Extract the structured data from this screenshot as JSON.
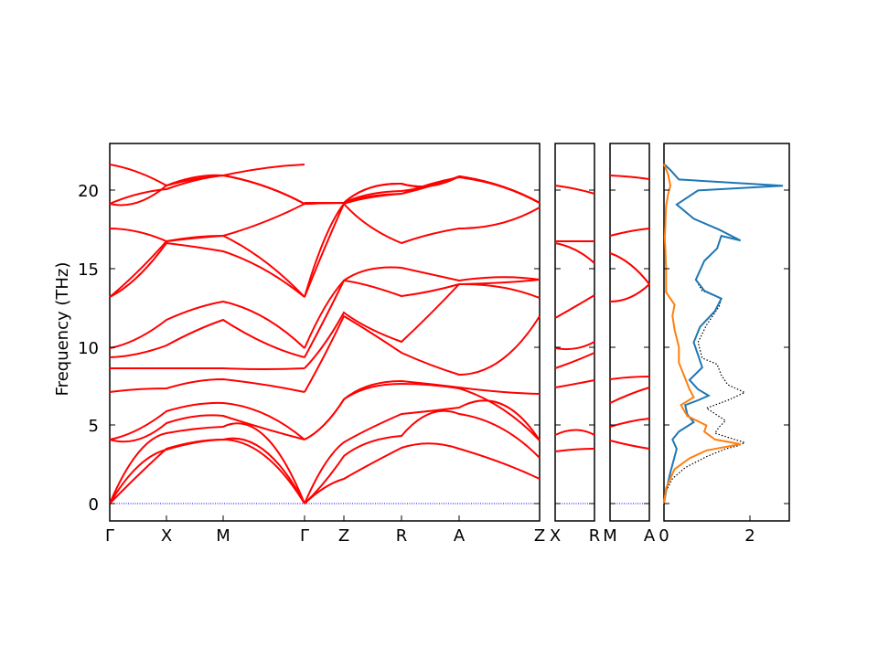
{
  "chart_data": {
    "type": "line",
    "ylabel": "Frequency (THz)",
    "ylim": [
      -1.1,
      23.0
    ],
    "yticks": [
      0,
      5,
      10,
      15,
      20
    ],
    "colors": {
      "bands": "#ff0000",
      "dos_total": "#000000",
      "dos_a": "#1f77b4",
      "dos_b": "#ff7f0e",
      "zero_line": "#0000ff"
    },
    "band_panels": [
      {
        "segments": [
          "Γ–X",
          "X–M",
          "M–Γ",
          "Γ–Z",
          "Z–R",
          "R–A",
          "A–Z"
        ],
        "tick_labels": [
          "Γ",
          "X",
          "M",
          "Γ",
          "Z",
          "R",
          "A",
          "Z"
        ],
        "approx_band_values_at_ticks": [
          [
            0,
            3.4,
            4.1,
            0,
            1.6,
            3.5,
            3.5,
            1.6
          ],
          [
            0,
            3.5,
            4.1,
            0,
            3.0,
            4.3,
            5.7,
            2.9
          ],
          [
            0,
            4.5,
            4.9,
            0,
            3.9,
            5.7,
            6.1,
            4.0
          ],
          [
            4.1,
            5.1,
            5.6,
            4.0,
            6.6,
            7.6,
            7.3,
            4.0
          ],
          [
            4.1,
            5.9,
            6.4,
            4.1,
            6.6,
            7.8,
            7.4,
            7.0
          ],
          [
            7.1,
            7.3,
            7.9,
            7.1,
            11.9,
            9.6,
            8.2,
            11.9
          ],
          [
            8.6,
            8.6,
            8.6,
            8.6,
            12.1,
            10.3,
            13.9,
            13.1
          ],
          [
            9.3,
            10.1,
            11.7,
            9.3,
            14.2,
            13.2,
            14.0,
            14.3
          ],
          [
            9.9,
            11.7,
            12.9,
            9.9,
            14.2,
            15.1,
            14.2,
            14.3
          ],
          [
            13.2,
            16.6,
            16.0,
            13.2,
            19.1,
            16.6,
            17.6,
            18.9
          ],
          [
            13.2,
            16.7,
            17.1,
            13.2,
            19.1,
            19.7,
            20.6,
            19.2
          ],
          [
            17.5,
            16.7,
            17.1,
            19.1,
            19.2,
            19.7,
            20.7,
            19.2
          ],
          [
            19.1,
            20.1,
            20.9,
            19.1,
            19.2,
            19.9,
            20.7,
            19.2
          ],
          [
            19.1,
            20.3,
            20.9,
            19.1,
            19.2,
            20.4,
            20.7,
            19.2
          ],
          [
            21.7,
            20.3,
            20.9,
            21.7,
            19.2,
            20.4,
            20.7,
            19.2
          ]
        ]
      },
      {
        "segments": [
          "X–R"
        ],
        "tick_labels": [
          "X",
          "R"
        ],
        "approx_band_values_at_ticks": [
          [
            3.3,
            3.5
          ],
          [
            4.4,
            4.4
          ],
          [
            7.4,
            7.9
          ],
          [
            8.6,
            9.6
          ],
          [
            9.9,
            10.4
          ],
          [
            11.8,
            13.3
          ],
          [
            16.6,
            15.4
          ],
          [
            16.7,
            16.7
          ],
          [
            20.3,
            19.8
          ]
        ]
      },
      {
        "segments": [
          "M–A"
        ],
        "tick_labels": [
          "M",
          "A"
        ],
        "approx_band_values_at_ticks": [
          [
            4.0,
            3.5
          ],
          [
            4.9,
            5.4
          ],
          [
            6.4,
            7.4
          ],
          [
            7.8,
            8.1
          ],
          [
            12.9,
            14.0
          ],
          [
            15.9,
            14.0
          ],
          [
            17.1,
            17.6
          ],
          [
            20.9,
            20.7
          ]
        ]
      }
    ],
    "dos": {
      "xlim": [
        0,
        2.95
      ],
      "xticks": [
        0,
        2
      ],
      "series": [
        {
          "style": "dotted",
          "points": [
            [
              0,
              0
            ],
            [
              0.05,
              0.8
            ],
            [
              0.2,
              1.6
            ],
            [
              0.5,
              2.3
            ],
            [
              1.0,
              3.0
            ],
            [
              1.45,
              3.5
            ],
            [
              1.75,
              3.7
            ],
            [
              1.9,
              3.9
            ],
            [
              1.55,
              4.2
            ],
            [
              1.2,
              4.5
            ],
            [
              1.3,
              4.9
            ],
            [
              1.45,
              5.3
            ],
            [
              1.0,
              6.1
            ],
            [
              1.5,
              6.6
            ],
            [
              1.9,
              7.1
            ],
            [
              1.5,
              7.6
            ],
            [
              1.35,
              8.2
            ],
            [
              1.25,
              8.9
            ],
            [
              0.9,
              9.3
            ],
            [
              0.8,
              10.3
            ],
            [
              1.0,
              11.4
            ],
            [
              1.3,
              12.6
            ],
            [
              1.35,
              13.1
            ],
            [
              0.9,
              13.6
            ],
            [
              0.75,
              14.3
            ],
            [
              0.95,
              15.5
            ],
            [
              1.25,
              16.3
            ],
            [
              1.35,
              17.1
            ],
            [
              1.8,
              16.8
            ],
            [
              1.3,
              17.5
            ],
            [
              0.7,
              18.2
            ],
            [
              0.3,
              19.1
            ],
            [
              0.8,
              20.0
            ],
            [
              2.8,
              20.3
            ],
            [
              0.35,
              20.7
            ],
            [
              0.15,
              21.3
            ],
            [
              0,
              21.7
            ]
          ]
        },
        {
          "style": "solid",
          "points": [
            [
              0,
              0
            ],
            [
              0.05,
              0.8
            ],
            [
              0.15,
              2.0
            ],
            [
              0.25,
              3.0
            ],
            [
              0.3,
              3.5
            ],
            [
              0.2,
              4.1
            ],
            [
              0.35,
              4.6
            ],
            [
              0.7,
              5.2
            ],
            [
              0.55,
              5.7
            ],
            [
              0.5,
              6.3
            ],
            [
              0.8,
              6.6
            ],
            [
              1.05,
              6.9
            ],
            [
              0.8,
              7.3
            ],
            [
              0.6,
              7.9
            ],
            [
              0.9,
              8.7
            ],
            [
              0.8,
              9.5
            ],
            [
              0.7,
              10.3
            ],
            [
              0.85,
              11.3
            ],
            [
              1.2,
              12.3
            ],
            [
              1.35,
              13.1
            ],
            [
              0.95,
              13.6
            ],
            [
              0.75,
              14.3
            ],
            [
              0.95,
              15.5
            ],
            [
              1.25,
              16.3
            ],
            [
              1.35,
              17.1
            ],
            [
              1.8,
              16.8
            ],
            [
              1.3,
              17.5
            ],
            [
              0.7,
              18.2
            ],
            [
              0.3,
              19.1
            ],
            [
              0.8,
              20.0
            ],
            [
              2.8,
              20.3
            ],
            [
              0.35,
              20.7
            ],
            [
              0.15,
              21.3
            ],
            [
              0,
              21.7
            ]
          ]
        },
        {
          "style": "solid",
          "points": [
            [
              0,
              0
            ],
            [
              0.05,
              1.0
            ],
            [
              0.25,
              2.2
            ],
            [
              0.6,
              2.9
            ],
            [
              1.0,
              3.4
            ],
            [
              1.8,
              3.8
            ],
            [
              1.2,
              4.1
            ],
            [
              0.95,
              4.6
            ],
            [
              1.0,
              5.0
            ],
            [
              0.55,
              5.6
            ],
            [
              0.4,
              6.3
            ],
            [
              0.7,
              6.8
            ],
            [
              0.6,
              7.3
            ],
            [
              0.5,
              8.0
            ],
            [
              0.35,
              9.0
            ],
            [
              0.35,
              10.0
            ],
            [
              0.25,
              11.1
            ],
            [
              0.2,
              12.0
            ],
            [
              0.25,
              12.7
            ],
            [
              0.05,
              13.5
            ],
            [
              0.05,
              15.0
            ],
            [
              0.02,
              17.0
            ],
            [
              0.05,
              19.0
            ],
            [
              0.1,
              19.8
            ],
            [
              0.15,
              20.3
            ],
            [
              0.1,
              21.0
            ],
            [
              0,
              21.7
            ]
          ]
        }
      ]
    }
  }
}
